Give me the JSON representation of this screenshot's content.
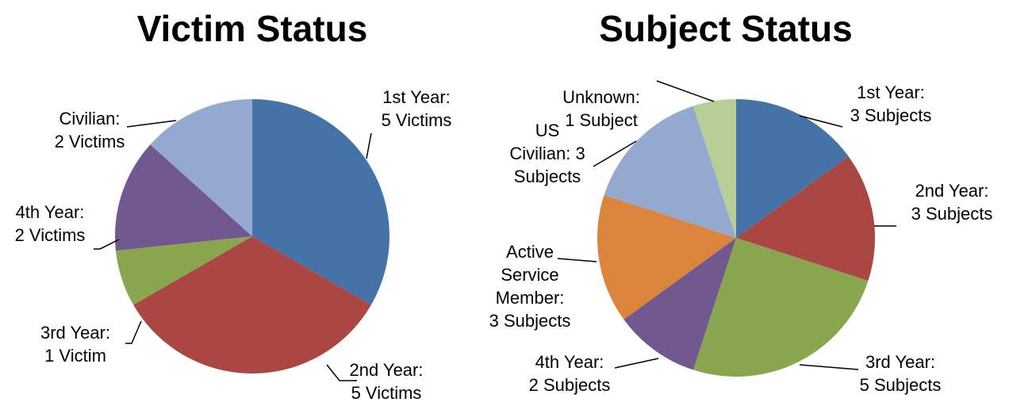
{
  "chart_data": [
    {
      "type": "pie",
      "title": "Victim Status",
      "categories": [
        "1st Year",
        "2nd Year",
        "3rd Year",
        "4th Year",
        "Civilian"
      ],
      "values": [
        5,
        5,
        1,
        2,
        2
      ],
      "value_labels": [
        "1st Year:\n5 Victims",
        "2nd Year:\n5 Victims",
        "3rd Year:\n1 Victim",
        "4th Year:\n2 Victims",
        "Civilian:\n2 Victims"
      ],
      "colors": [
        "#4572a7",
        "#aa4643",
        "#89a54e",
        "#71588f",
        "#93a9cf"
      ]
    },
    {
      "type": "pie",
      "title": "Subject Status",
      "categories": [
        "1st Year",
        "2nd Year",
        "3rd Year",
        "4th Year",
        "Active Service Member",
        "US Civilian",
        "Unknown"
      ],
      "values": [
        3,
        3,
        5,
        2,
        3,
        3,
        1
      ],
      "value_labels": [
        "1st Year:\n3 Subjects",
        "2nd Year:\n3 Subjects",
        "3rd Year:\n5 Subjects",
        "4th Year:\n2 Subjects",
        "Active\nService\nMember:\n3 Subjects",
        "US\nCivilian: 3\nSubjects",
        "Unknown:\n1 Subject"
      ],
      "colors": [
        "#4572a7",
        "#aa4643",
        "#89a54e",
        "#71588f",
        "#db843d",
        "#93a9cf",
        "#b9cd96"
      ]
    }
  ]
}
